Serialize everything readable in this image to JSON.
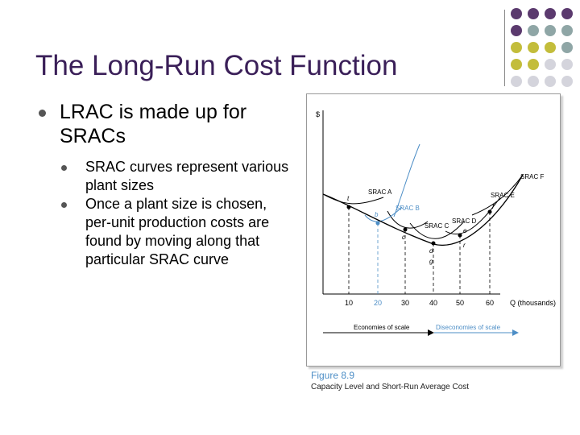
{
  "slide": {
    "title": "The Long-Run Cost Function",
    "bullet": "LRAC is made up for SRACs",
    "sub_bullets": [
      "SRAC curves represent various plant sizes",
      "Once a plant size is chosen, per-unit production costs are found by moving along that particular SRAC curve"
    ]
  },
  "figure": {
    "y_axis_label": "$",
    "x_axis_label": "Q (thousands)",
    "x_ticks": [
      "10",
      "20",
      "30",
      "40",
      "50",
      "60"
    ],
    "curve_labels": [
      "SRAC A",
      "SRAC B",
      "SRAC C",
      "SRAC D",
      "SRAC E",
      "SRAC F"
    ],
    "point_labels": [
      "t",
      "b",
      "c",
      "d",
      "e",
      "f",
      "r",
      "g"
    ],
    "economies_label": "Economies of scale",
    "diseconomies_label": "Diseconomies of scale",
    "caption_number": "Figure 8.9",
    "caption_text": "Capacity Level and Short-Run Average Cost"
  },
  "decor": {
    "dot_colors": [
      "#5b3a6e",
      "#8fa6a6",
      "#c3bd3b",
      "#d4d4dc"
    ]
  }
}
